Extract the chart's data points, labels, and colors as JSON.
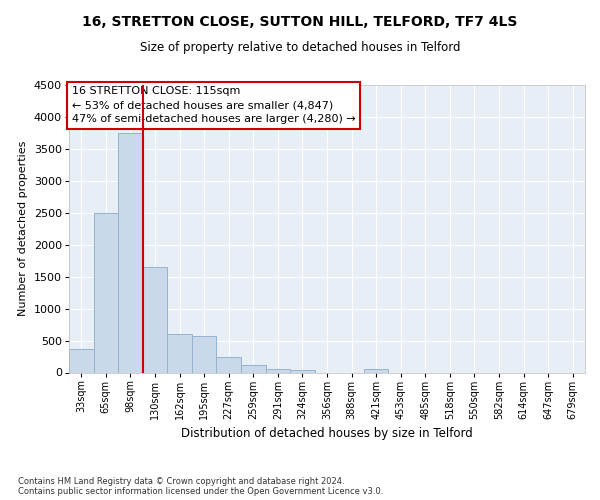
{
  "title1": "16, STRETTON CLOSE, SUTTON HILL, TELFORD, TF7 4LS",
  "title2": "Size of property relative to detached houses in Telford",
  "xlabel": "Distribution of detached houses by size in Telford",
  "ylabel": "Number of detached properties",
  "footer1": "Contains HM Land Registry data © Crown copyright and database right 2024.",
  "footer2": "Contains public sector information licensed under the Open Government Licence v3.0.",
  "annotation_title": "16 STRETTON CLOSE: 115sqm",
  "annotation_line1": "← 53% of detached houses are smaller (4,847)",
  "annotation_line2": "47% of semi-detached houses are larger (4,280) →",
  "categories": [
    "33sqm",
    "65sqm",
    "98sqm",
    "130sqm",
    "162sqm",
    "195sqm",
    "227sqm",
    "259sqm",
    "291sqm",
    "324sqm",
    "356sqm",
    "388sqm",
    "421sqm",
    "453sqm",
    "485sqm",
    "518sqm",
    "550sqm",
    "582sqm",
    "614sqm",
    "647sqm",
    "679sqm"
  ],
  "values": [
    370,
    2500,
    3750,
    1650,
    600,
    575,
    235,
    110,
    60,
    40,
    0,
    0,
    50,
    0,
    0,
    0,
    0,
    0,
    0,
    0,
    0
  ],
  "bar_color": "#c9d9ea",
  "bar_edge_color": "#92b4cc",
  "vline_color": "#cc0000",
  "vline_x_idx": 2.53,
  "ylim": [
    0,
    4500
  ],
  "yticks": [
    0,
    500,
    1000,
    1500,
    2000,
    2500,
    3000,
    3500,
    4000,
    4500
  ],
  "bg_color": "#e8eef5",
  "grid_color": "#ffffff"
}
